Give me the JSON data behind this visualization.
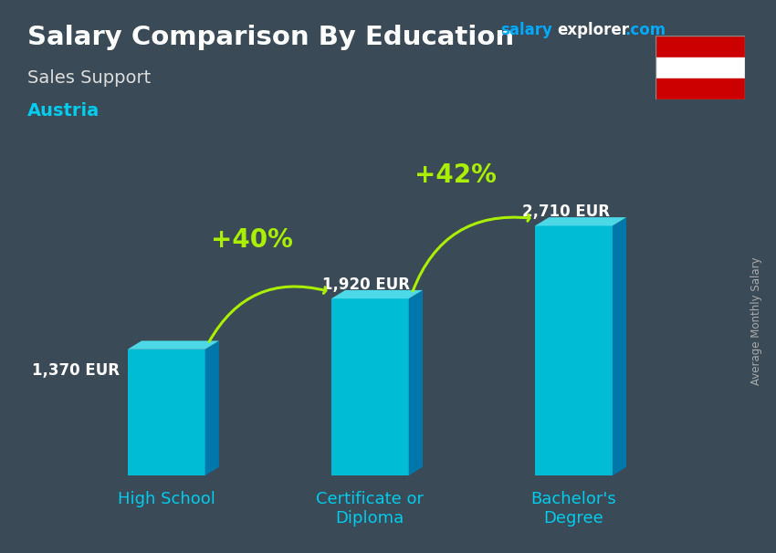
{
  "title": "Salary Comparison By Education",
  "subtitle": "Sales Support",
  "country": "Austria",
  "ylabel": "Average Monthly Salary",
  "categories": [
    "High School",
    "Certificate or\nDiploma",
    "Bachelor's\nDegree"
  ],
  "values": [
    1370,
    1920,
    2710
  ],
  "value_labels": [
    "1,370 EUR",
    "1,920 EUR",
    "2,710 EUR"
  ],
  "pct_labels": [
    "+40%",
    "+42%"
  ],
  "bar_color_face": "#00bcd4",
  "bar_color_top": "#4dd8e8",
  "bar_color_side": "#0077aa",
  "bg_color": "#3a4a56",
  "title_color": "#ffffff",
  "subtitle_color": "#dddddd",
  "country_color": "#00ccee",
  "value_label_color": "#ffffff",
  "pct_color": "#aaee00",
  "arrow_color": "#aaee00",
  "xtick_color": "#00ccee",
  "website_salary_color": "#00aaff",
  "website_explorer_color": "#ffffff",
  "website_com_color": "#00aaff",
  "figsize": [
    8.5,
    6.06
  ],
  "dpi": 100,
  "ylim": [
    0,
    3300
  ],
  "bar_width": 0.38
}
